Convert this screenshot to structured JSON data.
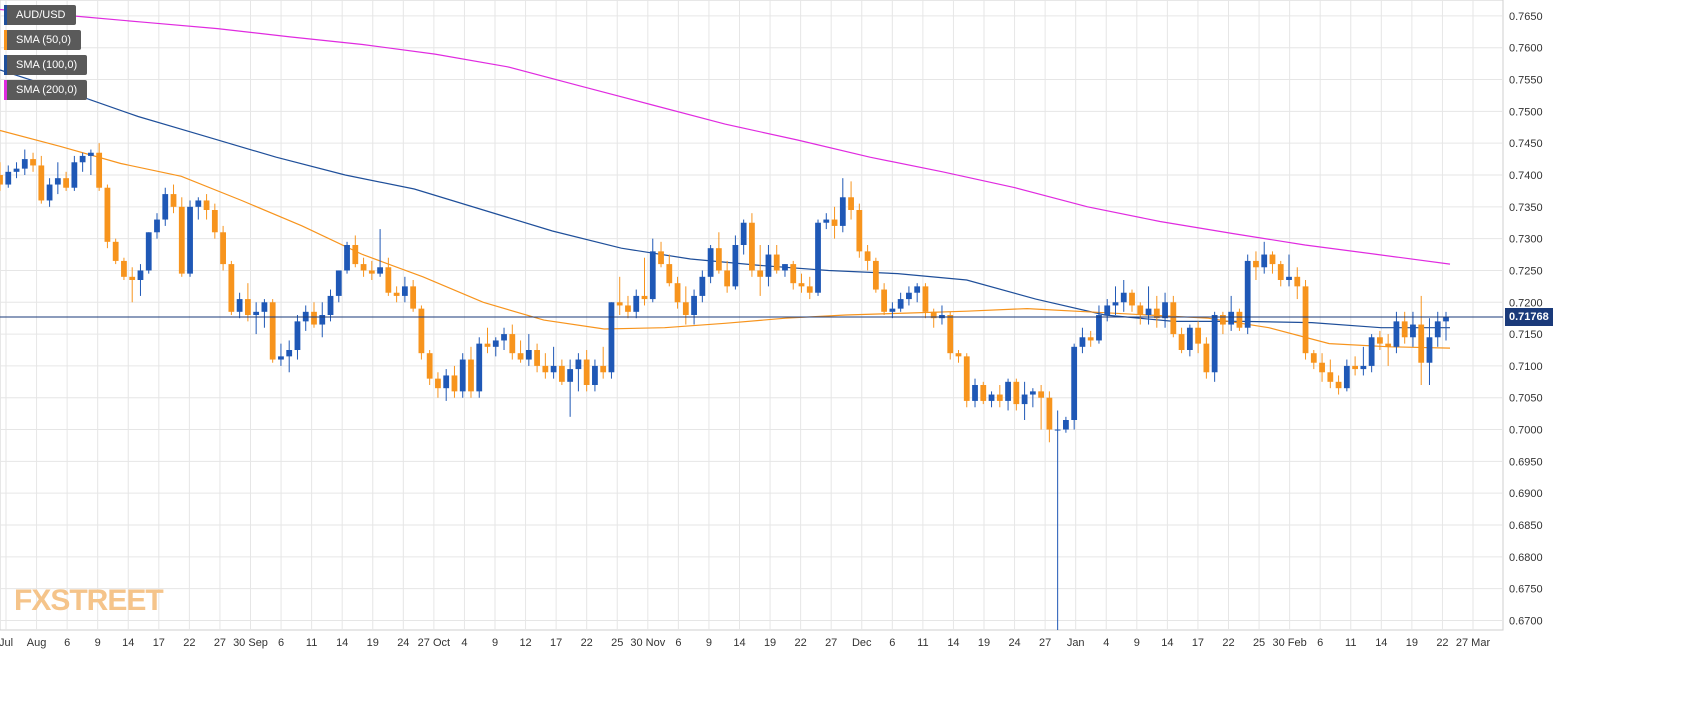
{
  "colors": {
    "bull": "#1f58b6",
    "bear": "#f7941d",
    "sma50": "#f7941d",
    "sma100": "#1f4f9a",
    "sma200": "#e02be0",
    "grid": "#e6e6e6",
    "price_line": "#1a3a7a"
  },
  "legend": [
    {
      "label": "AUD/USD",
      "color": "#1f4f9a"
    },
    {
      "label": "SMA (50,0)",
      "color": "#f7941d"
    },
    {
      "label": "SMA (100,0)",
      "color": "#1f4f9a"
    },
    {
      "label": "SMA (200,0)",
      "color": "#e02be0"
    }
  ],
  "watermark": "FXSTREET",
  "current_price": "0.71768",
  "chart_data": {
    "type": "candlestick",
    "title": "",
    "ylim": [
      0.6685,
      0.7675
    ],
    "y_ticks": [
      "0.7650",
      "0.7600",
      "0.7550",
      "0.7500",
      "0.7450",
      "0.7400",
      "0.7350",
      "0.7300",
      "0.7250",
      "0.7200",
      "0.7150",
      "0.7100",
      "0.7050",
      "0.7000",
      "0.6950",
      "0.6900",
      "0.6850",
      "0.6800",
      "0.6750",
      "0.6700"
    ],
    "x_ticks": [
      "Jul",
      "Aug",
      "6",
      "9",
      "14",
      "17",
      "22",
      "27",
      "30 Sep",
      "6",
      "11",
      "14",
      "19",
      "24",
      "27 Oct",
      "4",
      "9",
      "12",
      "17",
      "22",
      "25",
      "30 Nov",
      "6",
      "9",
      "14",
      "19",
      "22",
      "27",
      "Dec",
      "6",
      "11",
      "14",
      "19",
      "24",
      "27",
      "Jan",
      "4",
      "9",
      "14",
      "17",
      "22",
      "25",
      "30 Feb",
      "6",
      "11",
      "14",
      "19",
      "22",
      "27 Mar"
    ],
    "candles": [
      {
        "o": 0.74,
        "h": 0.742,
        "l": 0.7375,
        "c": 0.7385
      },
      {
        "o": 0.7385,
        "h": 0.7415,
        "l": 0.738,
        "c": 0.7405
      },
      {
        "o": 0.7405,
        "h": 0.742,
        "l": 0.7395,
        "c": 0.741
      },
      {
        "o": 0.741,
        "h": 0.744,
        "l": 0.74,
        "c": 0.7425
      },
      {
        "o": 0.7425,
        "h": 0.7435,
        "l": 0.7405,
        "c": 0.7415
      },
      {
        "o": 0.7415,
        "h": 0.743,
        "l": 0.7355,
        "c": 0.736
      },
      {
        "o": 0.736,
        "h": 0.7395,
        "l": 0.735,
        "c": 0.7385
      },
      {
        "o": 0.7385,
        "h": 0.742,
        "l": 0.737,
        "c": 0.7395
      },
      {
        "o": 0.7395,
        "h": 0.7405,
        "l": 0.7375,
        "c": 0.738
      },
      {
        "o": 0.738,
        "h": 0.743,
        "l": 0.7375,
        "c": 0.742
      },
      {
        "o": 0.742,
        "h": 0.7435,
        "l": 0.7405,
        "c": 0.743
      },
      {
        "o": 0.743,
        "h": 0.744,
        "l": 0.74,
        "c": 0.7435
      },
      {
        "o": 0.7435,
        "h": 0.745,
        "l": 0.7375,
        "c": 0.738
      },
      {
        "o": 0.738,
        "h": 0.7385,
        "l": 0.7285,
        "c": 0.7295
      },
      {
        "o": 0.7295,
        "h": 0.73,
        "l": 0.726,
        "c": 0.7265
      },
      {
        "o": 0.7265,
        "h": 0.727,
        "l": 0.7235,
        "c": 0.724
      },
      {
        "o": 0.724,
        "h": 0.7255,
        "l": 0.72,
        "c": 0.7235
      },
      {
        "o": 0.7235,
        "h": 0.726,
        "l": 0.721,
        "c": 0.725
      },
      {
        "o": 0.725,
        "h": 0.731,
        "l": 0.7245,
        "c": 0.731
      },
      {
        "o": 0.731,
        "h": 0.734,
        "l": 0.73,
        "c": 0.733
      },
      {
        "o": 0.733,
        "h": 0.738,
        "l": 0.732,
        "c": 0.737
      },
      {
        "o": 0.737,
        "h": 0.7385,
        "l": 0.734,
        "c": 0.735
      },
      {
        "o": 0.735,
        "h": 0.7365,
        "l": 0.724,
        "c": 0.7245
      },
      {
        "o": 0.7245,
        "h": 0.736,
        "l": 0.724,
        "c": 0.735
      },
      {
        "o": 0.735,
        "h": 0.7365,
        "l": 0.733,
        "c": 0.736
      },
      {
        "o": 0.736,
        "h": 0.737,
        "l": 0.733,
        "c": 0.7345
      },
      {
        "o": 0.7345,
        "h": 0.7355,
        "l": 0.73,
        "c": 0.731
      },
      {
        "o": 0.731,
        "h": 0.732,
        "l": 0.725,
        "c": 0.726
      },
      {
        "o": 0.726,
        "h": 0.7265,
        "l": 0.718,
        "c": 0.7185
      },
      {
        "o": 0.7185,
        "h": 0.7215,
        "l": 0.7175,
        "c": 0.7205
      },
      {
        "o": 0.7205,
        "h": 0.723,
        "l": 0.717,
        "c": 0.718
      },
      {
        "o": 0.718,
        "h": 0.72,
        "l": 0.715,
        "c": 0.7185
      },
      {
        "o": 0.7185,
        "h": 0.7205,
        "l": 0.716,
        "c": 0.72
      },
      {
        "o": 0.72,
        "h": 0.7205,
        "l": 0.7105,
        "c": 0.711
      },
      {
        "o": 0.711,
        "h": 0.7135,
        "l": 0.71,
        "c": 0.7115
      },
      {
        "o": 0.7115,
        "h": 0.714,
        "l": 0.709,
        "c": 0.7125
      },
      {
        "o": 0.7125,
        "h": 0.718,
        "l": 0.711,
        "c": 0.717
      },
      {
        "o": 0.717,
        "h": 0.7195,
        "l": 0.7155,
        "c": 0.7185
      },
      {
        "o": 0.7185,
        "h": 0.72,
        "l": 0.716,
        "c": 0.7165
      },
      {
        "o": 0.7165,
        "h": 0.72,
        "l": 0.7145,
        "c": 0.718
      },
      {
        "o": 0.718,
        "h": 0.722,
        "l": 0.717,
        "c": 0.721
      },
      {
        "o": 0.721,
        "h": 0.725,
        "l": 0.72,
        "c": 0.725
      },
      {
        "o": 0.725,
        "h": 0.7295,
        "l": 0.7245,
        "c": 0.729
      },
      {
        "o": 0.729,
        "h": 0.7305,
        "l": 0.7255,
        "c": 0.726
      },
      {
        "o": 0.726,
        "h": 0.727,
        "l": 0.724,
        "c": 0.725
      },
      {
        "o": 0.725,
        "h": 0.7265,
        "l": 0.7235,
        "c": 0.7245
      },
      {
        "o": 0.7245,
        "h": 0.7315,
        "l": 0.724,
        "c": 0.7255
      },
      {
        "o": 0.7255,
        "h": 0.727,
        "l": 0.721,
        "c": 0.7215
      },
      {
        "o": 0.7215,
        "h": 0.7225,
        "l": 0.72,
        "c": 0.721
      },
      {
        "o": 0.721,
        "h": 0.724,
        "l": 0.72,
        "c": 0.7225
      },
      {
        "o": 0.7225,
        "h": 0.7235,
        "l": 0.7185,
        "c": 0.719
      },
      {
        "o": 0.719,
        "h": 0.7195,
        "l": 0.711,
        "c": 0.712
      },
      {
        "o": 0.712,
        "h": 0.7125,
        "l": 0.707,
        "c": 0.708
      },
      {
        "o": 0.708,
        "h": 0.709,
        "l": 0.705,
        "c": 0.7065
      },
      {
        "o": 0.7065,
        "h": 0.7095,
        "l": 0.7045,
        "c": 0.7085
      },
      {
        "o": 0.7085,
        "h": 0.71,
        "l": 0.705,
        "c": 0.706
      },
      {
        "o": 0.706,
        "h": 0.712,
        "l": 0.705,
        "c": 0.711
      },
      {
        "o": 0.711,
        "h": 0.713,
        "l": 0.705,
        "c": 0.706
      },
      {
        "o": 0.706,
        "h": 0.7145,
        "l": 0.705,
        "c": 0.7135
      },
      {
        "o": 0.7135,
        "h": 0.716,
        "l": 0.712,
        "c": 0.713
      },
      {
        "o": 0.713,
        "h": 0.7145,
        "l": 0.7115,
        "c": 0.714
      },
      {
        "o": 0.714,
        "h": 0.716,
        "l": 0.7125,
        "c": 0.715
      },
      {
        "o": 0.715,
        "h": 0.7165,
        "l": 0.711,
        "c": 0.712
      },
      {
        "o": 0.712,
        "h": 0.714,
        "l": 0.7105,
        "c": 0.711
      },
      {
        "o": 0.711,
        "h": 0.715,
        "l": 0.71,
        "c": 0.7125
      },
      {
        "o": 0.7125,
        "h": 0.7135,
        "l": 0.709,
        "c": 0.71
      },
      {
        "o": 0.71,
        "h": 0.712,
        "l": 0.708,
        "c": 0.709
      },
      {
        "o": 0.709,
        "h": 0.713,
        "l": 0.708,
        "c": 0.71
      },
      {
        "o": 0.71,
        "h": 0.711,
        "l": 0.707,
        "c": 0.7075
      },
      {
        "o": 0.7075,
        "h": 0.711,
        "l": 0.702,
        "c": 0.7095
      },
      {
        "o": 0.7095,
        "h": 0.712,
        "l": 0.706,
        "c": 0.711
      },
      {
        "o": 0.711,
        "h": 0.7125,
        "l": 0.706,
        "c": 0.707
      },
      {
        "o": 0.707,
        "h": 0.711,
        "l": 0.706,
        "c": 0.71
      },
      {
        "o": 0.71,
        "h": 0.713,
        "l": 0.708,
        "c": 0.709
      },
      {
        "o": 0.709,
        "h": 0.72,
        "l": 0.708,
        "c": 0.72
      },
      {
        "o": 0.72,
        "h": 0.724,
        "l": 0.718,
        "c": 0.7195
      },
      {
        "o": 0.7195,
        "h": 0.721,
        "l": 0.7175,
        "c": 0.7185
      },
      {
        "o": 0.7185,
        "h": 0.722,
        "l": 0.7175,
        "c": 0.721
      },
      {
        "o": 0.721,
        "h": 0.727,
        "l": 0.7195,
        "c": 0.7205
      },
      {
        "o": 0.7205,
        "h": 0.73,
        "l": 0.72,
        "c": 0.728
      },
      {
        "o": 0.728,
        "h": 0.7295,
        "l": 0.7255,
        "c": 0.726
      },
      {
        "o": 0.726,
        "h": 0.7275,
        "l": 0.7225,
        "c": 0.723
      },
      {
        "o": 0.723,
        "h": 0.724,
        "l": 0.719,
        "c": 0.72
      },
      {
        "o": 0.72,
        "h": 0.7225,
        "l": 0.7165,
        "c": 0.718
      },
      {
        "o": 0.718,
        "h": 0.722,
        "l": 0.7165,
        "c": 0.721
      },
      {
        "o": 0.721,
        "h": 0.725,
        "l": 0.72,
        "c": 0.724
      },
      {
        "o": 0.724,
        "h": 0.729,
        "l": 0.723,
        "c": 0.7285
      },
      {
        "o": 0.7285,
        "h": 0.731,
        "l": 0.7245,
        "c": 0.725
      },
      {
        "o": 0.725,
        "h": 0.7265,
        "l": 0.7215,
        "c": 0.7225
      },
      {
        "o": 0.7225,
        "h": 0.7305,
        "l": 0.722,
        "c": 0.729
      },
      {
        "o": 0.729,
        "h": 0.733,
        "l": 0.7275,
        "c": 0.7325
      },
      {
        "o": 0.7325,
        "h": 0.734,
        "l": 0.724,
        "c": 0.725
      },
      {
        "o": 0.725,
        "h": 0.729,
        "l": 0.721,
        "c": 0.724
      },
      {
        "o": 0.724,
        "h": 0.729,
        "l": 0.7225,
        "c": 0.7275
      },
      {
        "o": 0.7275,
        "h": 0.729,
        "l": 0.7245,
        "c": 0.725
      },
      {
        "o": 0.725,
        "h": 0.726,
        "l": 0.724,
        "c": 0.726
      },
      {
        "o": 0.726,
        "h": 0.7265,
        "l": 0.722,
        "c": 0.723
      },
      {
        "o": 0.723,
        "h": 0.7245,
        "l": 0.7215,
        "c": 0.7225
      },
      {
        "o": 0.7225,
        "h": 0.724,
        "l": 0.7205,
        "c": 0.7215
      },
      {
        "o": 0.7215,
        "h": 0.733,
        "l": 0.721,
        "c": 0.7325
      },
      {
        "o": 0.7325,
        "h": 0.734,
        "l": 0.7315,
        "c": 0.733
      },
      {
        "o": 0.733,
        "h": 0.735,
        "l": 0.73,
        "c": 0.732
      },
      {
        "o": 0.732,
        "h": 0.7395,
        "l": 0.731,
        "c": 0.7365
      },
      {
        "o": 0.7365,
        "h": 0.739,
        "l": 0.733,
        "c": 0.7345
      },
      {
        "o": 0.7345,
        "h": 0.7355,
        "l": 0.727,
        "c": 0.728
      },
      {
        "o": 0.728,
        "h": 0.729,
        "l": 0.725,
        "c": 0.7265
      },
      {
        "o": 0.7265,
        "h": 0.727,
        "l": 0.7215,
        "c": 0.722
      },
      {
        "o": 0.722,
        "h": 0.723,
        "l": 0.718,
        "c": 0.7185
      },
      {
        "o": 0.7185,
        "h": 0.72,
        "l": 0.7175,
        "c": 0.719
      },
      {
        "o": 0.719,
        "h": 0.7215,
        "l": 0.7185,
        "c": 0.7205
      },
      {
        "o": 0.7205,
        "h": 0.7225,
        "l": 0.7195,
        "c": 0.7215
      },
      {
        "o": 0.7215,
        "h": 0.723,
        "l": 0.72,
        "c": 0.7225
      },
      {
        "o": 0.7225,
        "h": 0.723,
        "l": 0.7175,
        "c": 0.7185
      },
      {
        "o": 0.7185,
        "h": 0.719,
        "l": 0.716,
        "c": 0.7175
      },
      {
        "o": 0.7175,
        "h": 0.7195,
        "l": 0.7165,
        "c": 0.718
      },
      {
        "o": 0.718,
        "h": 0.7185,
        "l": 0.711,
        "c": 0.712
      },
      {
        "o": 0.712,
        "h": 0.7125,
        "l": 0.7105,
        "c": 0.7115
      },
      {
        "o": 0.7115,
        "h": 0.712,
        "l": 0.7035,
        "c": 0.7045
      },
      {
        "o": 0.7045,
        "h": 0.708,
        "l": 0.7035,
        "c": 0.707
      },
      {
        "o": 0.707,
        "h": 0.7075,
        "l": 0.704,
        "c": 0.7045
      },
      {
        "o": 0.7045,
        "h": 0.706,
        "l": 0.7035,
        "c": 0.7055
      },
      {
        "o": 0.7055,
        "h": 0.707,
        "l": 0.7035,
        "c": 0.7045
      },
      {
        "o": 0.7045,
        "h": 0.708,
        "l": 0.703,
        "c": 0.7075
      },
      {
        "o": 0.7075,
        "h": 0.708,
        "l": 0.703,
        "c": 0.704
      },
      {
        "o": 0.704,
        "h": 0.7075,
        "l": 0.7015,
        "c": 0.7055
      },
      {
        "o": 0.7055,
        "h": 0.7065,
        "l": 0.7035,
        "c": 0.706
      },
      {
        "o": 0.706,
        "h": 0.707,
        "l": 0.7,
        "c": 0.705
      },
      {
        "o": 0.705,
        "h": 0.706,
        "l": 0.698,
        "c": 0.7
      },
      {
        "o": 0.7,
        "h": 0.703,
        "l": 0.6685,
        "c": 0.7
      },
      {
        "o": 0.7,
        "h": 0.702,
        "l": 0.6995,
        "c": 0.7015
      },
      {
        "o": 0.7015,
        "h": 0.7135,
        "l": 0.7,
        "c": 0.713
      },
      {
        "o": 0.713,
        "h": 0.716,
        "l": 0.712,
        "c": 0.7145
      },
      {
        "o": 0.7145,
        "h": 0.7155,
        "l": 0.713,
        "c": 0.714
      },
      {
        "o": 0.714,
        "h": 0.7195,
        "l": 0.7135,
        "c": 0.718
      },
      {
        "o": 0.718,
        "h": 0.7205,
        "l": 0.717,
        "c": 0.7195
      },
      {
        "o": 0.7195,
        "h": 0.7225,
        "l": 0.718,
        "c": 0.72
      },
      {
        "o": 0.72,
        "h": 0.7235,
        "l": 0.7185,
        "c": 0.7215
      },
      {
        "o": 0.7215,
        "h": 0.722,
        "l": 0.7185,
        "c": 0.7195
      },
      {
        "o": 0.7195,
        "h": 0.72,
        "l": 0.7165,
        "c": 0.718
      },
      {
        "o": 0.718,
        "h": 0.7225,
        "l": 0.7165,
        "c": 0.719
      },
      {
        "o": 0.719,
        "h": 0.721,
        "l": 0.716,
        "c": 0.7175
      },
      {
        "o": 0.7175,
        "h": 0.7215,
        "l": 0.716,
        "c": 0.72
      },
      {
        "o": 0.72,
        "h": 0.721,
        "l": 0.7145,
        "c": 0.715
      },
      {
        "o": 0.715,
        "h": 0.716,
        "l": 0.712,
        "c": 0.7125
      },
      {
        "o": 0.7125,
        "h": 0.7165,
        "l": 0.7115,
        "c": 0.716
      },
      {
        "o": 0.716,
        "h": 0.717,
        "l": 0.712,
        "c": 0.7135
      },
      {
        "o": 0.7135,
        "h": 0.7145,
        "l": 0.708,
        "c": 0.709
      },
      {
        "o": 0.709,
        "h": 0.7185,
        "l": 0.7075,
        "c": 0.718
      },
      {
        "o": 0.718,
        "h": 0.7185,
        "l": 0.715,
        "c": 0.7165
      },
      {
        "o": 0.7165,
        "h": 0.721,
        "l": 0.7155,
        "c": 0.7185
      },
      {
        "o": 0.7185,
        "h": 0.719,
        "l": 0.7155,
        "c": 0.716
      },
      {
        "o": 0.716,
        "h": 0.7275,
        "l": 0.715,
        "c": 0.7265
      },
      {
        "o": 0.7265,
        "h": 0.728,
        "l": 0.7235,
        "c": 0.7255
      },
      {
        "o": 0.7255,
        "h": 0.7295,
        "l": 0.7245,
        "c": 0.7275
      },
      {
        "o": 0.7275,
        "h": 0.728,
        "l": 0.7245,
        "c": 0.726
      },
      {
        "o": 0.726,
        "h": 0.7265,
        "l": 0.7225,
        "c": 0.7235
      },
      {
        "o": 0.7235,
        "h": 0.7275,
        "l": 0.7225,
        "c": 0.724
      },
      {
        "o": 0.724,
        "h": 0.7255,
        "l": 0.7205,
        "c": 0.7225
      },
      {
        "o": 0.7225,
        "h": 0.7235,
        "l": 0.711,
        "c": 0.712
      },
      {
        "o": 0.712,
        "h": 0.7125,
        "l": 0.7095,
        "c": 0.7105
      },
      {
        "o": 0.7105,
        "h": 0.712,
        "l": 0.7075,
        "c": 0.709
      },
      {
        "o": 0.709,
        "h": 0.711,
        "l": 0.7065,
        "c": 0.7075
      },
      {
        "o": 0.7075,
        "h": 0.7085,
        "l": 0.7055,
        "c": 0.7065
      },
      {
        "o": 0.7065,
        "h": 0.711,
        "l": 0.706,
        "c": 0.71
      },
      {
        "o": 0.71,
        "h": 0.7115,
        "l": 0.7085,
        "c": 0.7095
      },
      {
        "o": 0.7095,
        "h": 0.713,
        "l": 0.7085,
        "c": 0.71
      },
      {
        "o": 0.71,
        "h": 0.715,
        "l": 0.709,
        "c": 0.7145
      },
      {
        "o": 0.7145,
        "h": 0.7155,
        "l": 0.7125,
        "c": 0.7135
      },
      {
        "o": 0.7135,
        "h": 0.715,
        "l": 0.71,
        "c": 0.713
      },
      {
        "o": 0.713,
        "h": 0.7185,
        "l": 0.712,
        "c": 0.717
      },
      {
        "o": 0.717,
        "h": 0.7185,
        "l": 0.7135,
        "c": 0.7145
      },
      {
        "o": 0.7145,
        "h": 0.7185,
        "l": 0.713,
        "c": 0.7165
      },
      {
        "o": 0.7165,
        "h": 0.721,
        "l": 0.707,
        "c": 0.7105
      },
      {
        "o": 0.7105,
        "h": 0.7175,
        "l": 0.707,
        "c": 0.7145
      },
      {
        "o": 0.7145,
        "h": 0.7185,
        "l": 0.713,
        "c": 0.717
      },
      {
        "o": 0.717,
        "h": 0.7185,
        "l": 0.714,
        "c": 0.7177
      }
    ],
    "sma50": [
      0.747,
      0.7445,
      0.7418,
      0.7398,
      0.736,
      0.732,
      0.7275,
      0.724,
      0.72,
      0.7172,
      0.7158,
      0.716,
      0.7167,
      0.7175,
      0.718,
      0.7183,
      0.7186,
      0.719,
      0.7185,
      0.718,
      0.7175,
      0.716,
      0.7135,
      0.713,
      0.7128
    ],
    "sma100": [
      0.7565,
      0.753,
      0.7492,
      0.746,
      0.7428,
      0.74,
      0.7378,
      0.7345,
      0.7312,
      0.7285,
      0.7268,
      0.7258,
      0.725,
      0.7245,
      0.7235,
      0.7205,
      0.718,
      0.717,
      0.717,
      0.7168,
      0.716,
      0.716
    ],
    "sma200": [
      0.766,
      0.765,
      0.764,
      0.763,
      0.7617,
      0.7605,
      0.759,
      0.757,
      0.754,
      0.751,
      0.748,
      0.7455,
      0.7428,
      0.7405,
      0.738,
      0.735,
      0.7327,
      0.7308,
      0.729,
      0.7275,
      0.726
    ]
  }
}
